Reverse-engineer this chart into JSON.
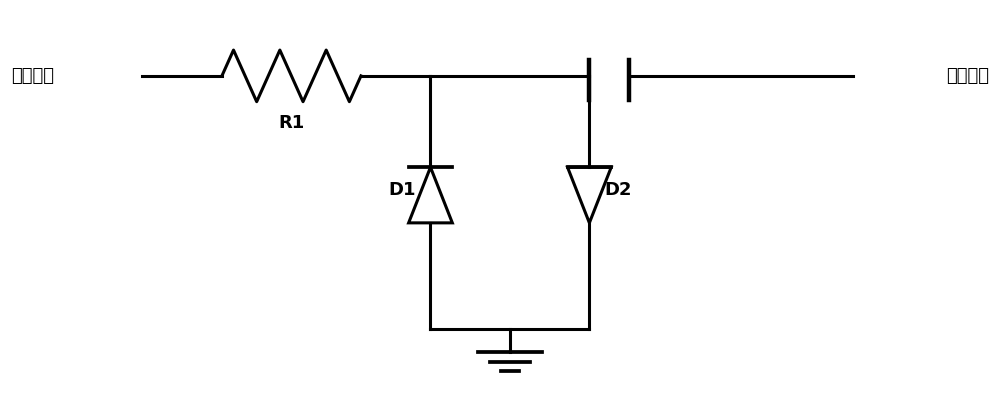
{
  "bg_color": "#ffffff",
  "line_color": "#000000",
  "line_width": 2.2,
  "fig_width": 10.0,
  "fig_height": 4.05,
  "dpi": 100,
  "input_label": "输入信号",
  "output_label": "输出信号",
  "r1_label": "R1",
  "d1_label": "D1",
  "d2_label": "D2",
  "font_size": 13,
  "font_family": "SimHei"
}
